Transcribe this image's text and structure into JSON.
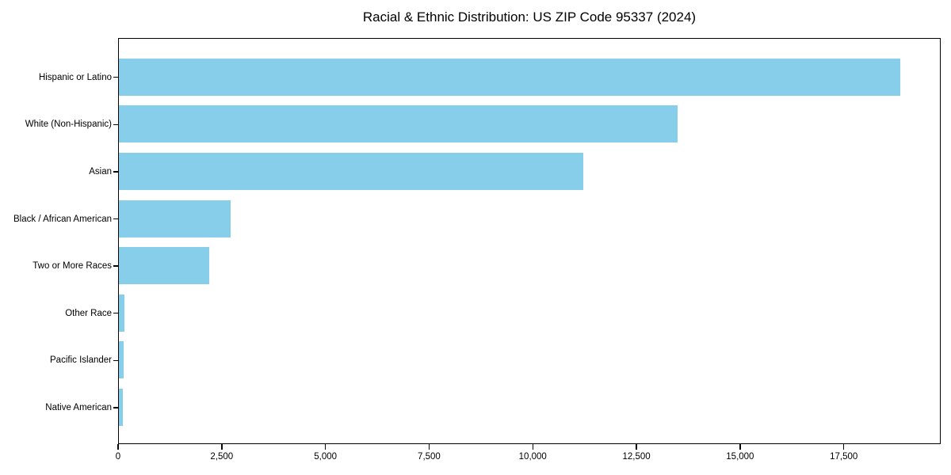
{
  "chart_data": {
    "type": "bar",
    "orientation": "horizontal",
    "title": "Racial & Ethnic Distribution: US ZIP Code 95337 (2024)",
    "categories": [
      "Hispanic or Latino",
      "White (Non-Hispanic)",
      "Asian",
      "Black / African American",
      "Two or More Races",
      "Other Race",
      "Pacific Islander",
      "Native American"
    ],
    "values": [
      18840,
      13480,
      11200,
      2690,
      2170,
      135,
      120,
      100
    ],
    "xlabel": "",
    "ylabel": "",
    "xlim": [
      0,
      19780
    ],
    "xticks": [
      0,
      2500,
      5000,
      7500,
      10000,
      12500,
      15000,
      17500
    ],
    "xtick_labels": [
      "0",
      "2,500",
      "5,000",
      "7,500",
      "10,000",
      "12,500",
      "15,000",
      "17,500"
    ],
    "bar_color": "#87CEEB",
    "spine_color": "#000000",
    "text_color": "#000000",
    "background_color": "#ffffff",
    "grid": false,
    "legend": "none"
  }
}
